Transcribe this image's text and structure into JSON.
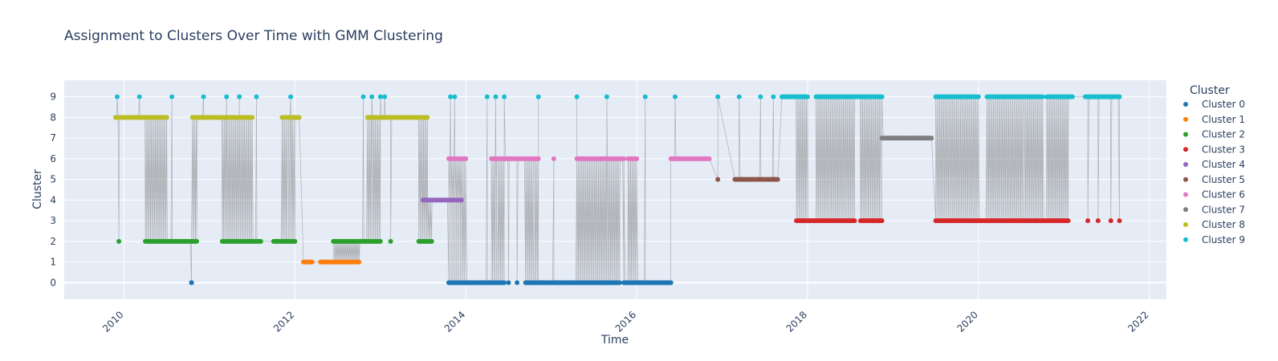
{
  "chart_data": {
    "type": "scatter",
    "title": "Assignment to Clusters Over Time with GMM Clustering",
    "xlabel": "Time",
    "ylabel": "Cluster",
    "xlim": [
      2009.3,
      2022.2
    ],
    "ylim": [
      -0.8,
      9.8
    ],
    "x_ticks": [
      2010,
      2012,
      2014,
      2016,
      2018,
      2020,
      2022
    ],
    "y_ticks": [
      0,
      1,
      2,
      3,
      4,
      5,
      6,
      7,
      8,
      9
    ],
    "grid": true,
    "legend_title": "Cluster",
    "legend_position": "right",
    "connector_color": "#808080",
    "colors": {
      "plot_bg": "#e5ecf6",
      "grid": "#ffffff",
      "text": "#2a3f5f"
    },
    "series": [
      {
        "name": "Cluster 0",
        "color": "#1f77b4",
        "segments": [
          [
            2010.79,
            2010.79
          ],
          [
            2013.8,
            2014.45
          ],
          [
            2014.7,
            2015.8
          ],
          [
            2015.85,
            2016.4
          ]
        ],
        "points": [
          2014.5,
          2014.6,
          2015.65
        ]
      },
      {
        "name": "Cluster 1",
        "color": "#ff7f0e",
        "segments": [
          [
            2012.1,
            2012.2
          ],
          [
            2012.3,
            2012.75
          ]
        ],
        "points": []
      },
      {
        "name": "Cluster 2",
        "color": "#2ca02c",
        "segments": [
          [
            2010.25,
            2010.85
          ],
          [
            2011.15,
            2011.6
          ],
          [
            2011.75,
            2012.0
          ],
          [
            2012.45,
            2013.0
          ],
          [
            2013.45,
            2013.6
          ]
        ],
        "points": [
          2009.94,
          2013.12
        ]
      },
      {
        "name": "Cluster 3",
        "color": "#d62728",
        "segments": [
          [
            2017.87,
            2018.55
          ],
          [
            2018.62,
            2018.87
          ],
          [
            2019.5,
            2021.05
          ]
        ],
        "points": [
          2021.28,
          2021.4,
          2021.55,
          2021.65
        ]
      },
      {
        "name": "Cluster 4",
        "color": "#9467bd",
        "segments": [
          [
            2013.5,
            2013.95
          ]
        ],
        "points": []
      },
      {
        "name": "Cluster 5",
        "color": "#8c564b",
        "segments": [
          [
            2017.15,
            2017.65
          ]
        ],
        "points": [
          2016.95
        ]
      },
      {
        "name": "Cluster 6",
        "color": "#e377c2",
        "segments": [
          [
            2013.8,
            2014.0
          ],
          [
            2014.3,
            2014.85
          ],
          [
            2015.3,
            2015.85
          ],
          [
            2015.9,
            2016.0
          ],
          [
            2016.4,
            2016.85
          ]
        ],
        "points": [
          2015.03
        ]
      },
      {
        "name": "Cluster 7",
        "color": "#7f7f7f",
        "segments": [
          [
            2018.87,
            2019.45
          ]
        ],
        "points": []
      },
      {
        "name": "Cluster 8",
        "color": "#bcbd22",
        "segments": [
          [
            2009.9,
            2010.5
          ],
          [
            2010.8,
            2011.5
          ],
          [
            2011.85,
            2012.05
          ],
          [
            2012.85,
            2013.55
          ]
        ],
        "points": []
      },
      {
        "name": "Cluster 9",
        "color": "#17becf",
        "segments": [
          [
            2017.7,
            2018.0
          ],
          [
            2018.1,
            2018.87
          ],
          [
            2019.5,
            2020.0
          ],
          [
            2020.1,
            2020.75
          ],
          [
            2020.8,
            2021.1
          ],
          [
            2021.25,
            2021.65
          ]
        ],
        "points": [
          2009.92,
          2010.18,
          2010.56,
          2010.93,
          2011.2,
          2011.35,
          2011.55,
          2011.95,
          2012.8,
          2012.9,
          2013.0,
          2013.05,
          2013.82,
          2013.87,
          2014.25,
          2014.35,
          2014.45,
          2014.85,
          2015.3,
          2015.65,
          2016.1,
          2016.45,
          2016.95,
          2017.2,
          2017.45,
          2017.6
        ]
      }
    ]
  }
}
